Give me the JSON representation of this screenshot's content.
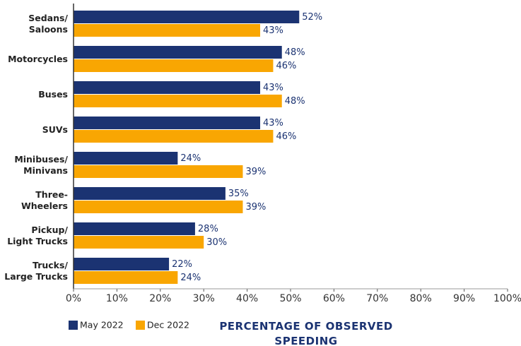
{
  "chart_data": {
    "type": "barh",
    "categories": [
      "Sedans/\nSaloons",
      "Motorcycles",
      "Buses",
      "SUVs",
      "Minibuses/\nMinivans",
      "Three-\nWheelers",
      "Pickup/\nLight Trucks",
      "Trucks/\nLarge Trucks"
    ],
    "series": [
      {
        "name": "May 2022",
        "color": "#1b3372",
        "values": [
          52,
          48,
          43,
          43,
          24,
          35,
          28,
          22
        ],
        "value_labels": [
          "52%",
          "48%",
          "43%",
          "43%",
          "24%",
          "35%",
          "28%",
          "22%"
        ]
      },
      {
        "name": "Dec 2022",
        "color": "#f9a602",
        "values": [
          43,
          46,
          48,
          46,
          39,
          39,
          30,
          24
        ],
        "value_labels": [
          "43%",
          "46%",
          "48%",
          "46%",
          "39%",
          "39%",
          "30%",
          "24%"
        ]
      }
    ],
    "xlim": [
      0,
      100
    ],
    "xticks": [
      {
        "value": 0,
        "label": "0%"
      },
      {
        "value": 10,
        "label": "10%"
      },
      {
        "value": 20,
        "label": "20%"
      },
      {
        "value": 30,
        "label": "30%"
      },
      {
        "value": 40,
        "label": "40%"
      },
      {
        "value": 50,
        "label": "50%"
      },
      {
        "value": 60,
        "label": "60%"
      },
      {
        "value": 70,
        "label": "70%"
      },
      {
        "value": 80,
        "label": "80%"
      },
      {
        "value": 90,
        "label": "90%"
      },
      {
        "value": 100,
        "label": "100%"
      }
    ],
    "xlabel": "PERCENTAGE OF OBSERVED\nSPEEDING",
    "legend": "bottom-left"
  }
}
